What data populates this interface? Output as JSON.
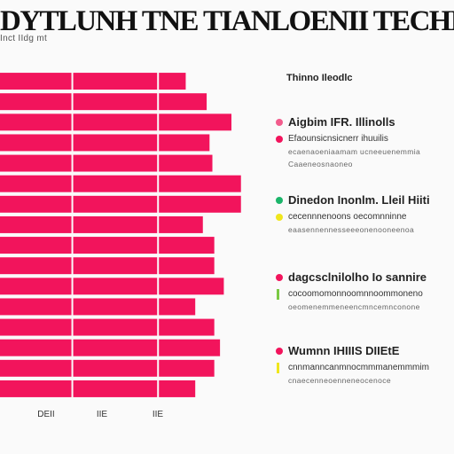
{
  "header": {
    "title": "DYTLUNH TNE TIANLOENII TECHLNH",
    "subtitle": "Inct  IIdg  mt"
  },
  "chart_data": {
    "type": "bar",
    "orientation": "horizontal",
    "stacked": true,
    "categories": [
      "",
      "",
      "",
      "",
      "",
      "",
      "",
      "",
      "",
      "",
      "",
      "",
      "",
      "",
      "",
      ""
    ],
    "series": [
      {
        "values": [
          75,
          75,
          75,
          75,
          75,
          75,
          75,
          75,
          75,
          75,
          75,
          75,
          75,
          75,
          75,
          75
        ]
      },
      {
        "values": [
          90,
          90,
          90,
          90,
          90,
          90,
          90,
          90,
          90,
          90,
          90,
          90,
          90,
          90,
          90,
          90
        ]
      },
      {
        "values": [
          30,
          52,
          78,
          55,
          58,
          88,
          88,
          48,
          60,
          60,
          70,
          40,
          60,
          66,
          60,
          40
        ]
      }
    ],
    "bar_color": "#f2145c",
    "xticks": [
      "DEII",
      "IIE",
      "IIE"
    ],
    "xlim": [
      0,
      270
    ],
    "grid": false,
    "legend": "none"
  },
  "panel": {
    "title": "Thinno  Ileodlc",
    "groups": [
      {
        "rows": [
          {
            "kind": "head",
            "marker": "dot",
            "color": "#f25c8c",
            "text": "Aigbim  IFR.  Illinolls"
          },
          {
            "kind": "line",
            "marker": "dot",
            "color": "#f2145c",
            "text": "Efaounsicnsicnerr  ihuuilis"
          },
          {
            "kind": "sub",
            "marker": "none",
            "color": "",
            "text": "ecaenaoeniaamam  ucneeuenemmia"
          },
          {
            "kind": "sub",
            "marker": "none",
            "color": "",
            "text": "Caaeneosnaoneo"
          }
        ]
      },
      {
        "rows": [
          {
            "kind": "head",
            "marker": "dot",
            "color": "#1bb56a",
            "text": "Dinedon  Inonlm.  Lleil Hiiti"
          },
          {
            "kind": "line",
            "marker": "dot",
            "color": "#f0e61c",
            "text": "cecennnenoons  oecomnninne"
          },
          {
            "kind": "sub",
            "marker": "none",
            "color": "",
            "text": "eaasennennesseeeonenooneenoa"
          }
        ]
      },
      {
        "rows": [
          {
            "kind": "head",
            "marker": "dot",
            "color": "#f2145c",
            "text": "dagcsclnilolho  Io  sannire"
          },
          {
            "kind": "line",
            "marker": "bar",
            "color": "#7ac943",
            "text": "cocoomomonnoomnnoommoneno"
          },
          {
            "kind": "sub",
            "marker": "none",
            "color": "",
            "text": "oeomenemmeneencmncemnconone"
          }
        ]
      },
      {
        "rows": [
          {
            "kind": "head",
            "marker": "dot",
            "color": "#f2145c",
            "text": "Wumnn  IHIIIS  DIIEtE"
          },
          {
            "kind": "line",
            "marker": "bar",
            "color": "#f0e61c",
            "text": "cnnmanncanmnocmmmanemmmim"
          },
          {
            "kind": "sub",
            "marker": "none",
            "color": "",
            "text": "cnaecenneoenneneocenoce"
          }
        ]
      }
    ]
  }
}
